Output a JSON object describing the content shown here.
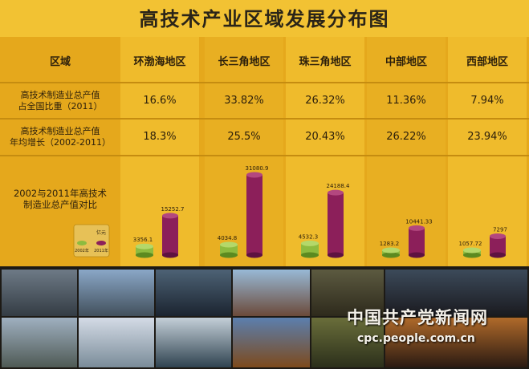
{
  "chart_data": {
    "type": "table",
    "title": "高技术产业区域发展分布图",
    "header_label": "区域",
    "columns": [
      "环渤海地区",
      "长三角地区",
      "珠三角地区",
      "中部地区",
      "西部地区"
    ],
    "rows": [
      {
        "label_lines": [
          "高技术制造业总产值",
          "占全国比重（2011）"
        ],
        "values": [
          "16.6%",
          "33.82%",
          "26.32%",
          "11.36%",
          "7.94%"
        ]
      },
      {
        "label_lines": [
          "高技术制造业总产值",
          "年均增长（2002-2011）"
        ],
        "values": [
          "18.3%",
          "25.5%",
          "20.43%",
          "26.22%",
          "23.94%"
        ]
      }
    ],
    "bar_row": {
      "label_lines": [
        "2002与2011年高技术",
        "制造业总产值对比"
      ],
      "legend": {
        "unit": "亿元",
        "series": [
          "2002年",
          "2011年"
        ]
      },
      "series": [
        {
          "name": "2002年",
          "color": "#8dbb3f",
          "values": [
            3356.1,
            4034.8,
            4532.3,
            1283.2,
            1057.72
          ]
        },
        {
          "name": "2011年",
          "color": "#8c1f5a",
          "values": [
            15252.7,
            31080.9,
            24188.4,
            10441.33,
            7297
          ]
        }
      ],
      "value_labels": {
        "2002年": [
          "3356.1",
          "4034.8",
          "4532.3",
          "1283.2",
          "1057.72"
        ],
        "2011年": [
          "15252.7",
          "31080.9",
          "24188.4",
          "10441.33",
          "7297"
        ]
      },
      "ymax": 31080.9
    }
  },
  "photos": {
    "count": 12,
    "watermark": "中国共产党新闻网",
    "url": "cpc.people.com.cn"
  }
}
